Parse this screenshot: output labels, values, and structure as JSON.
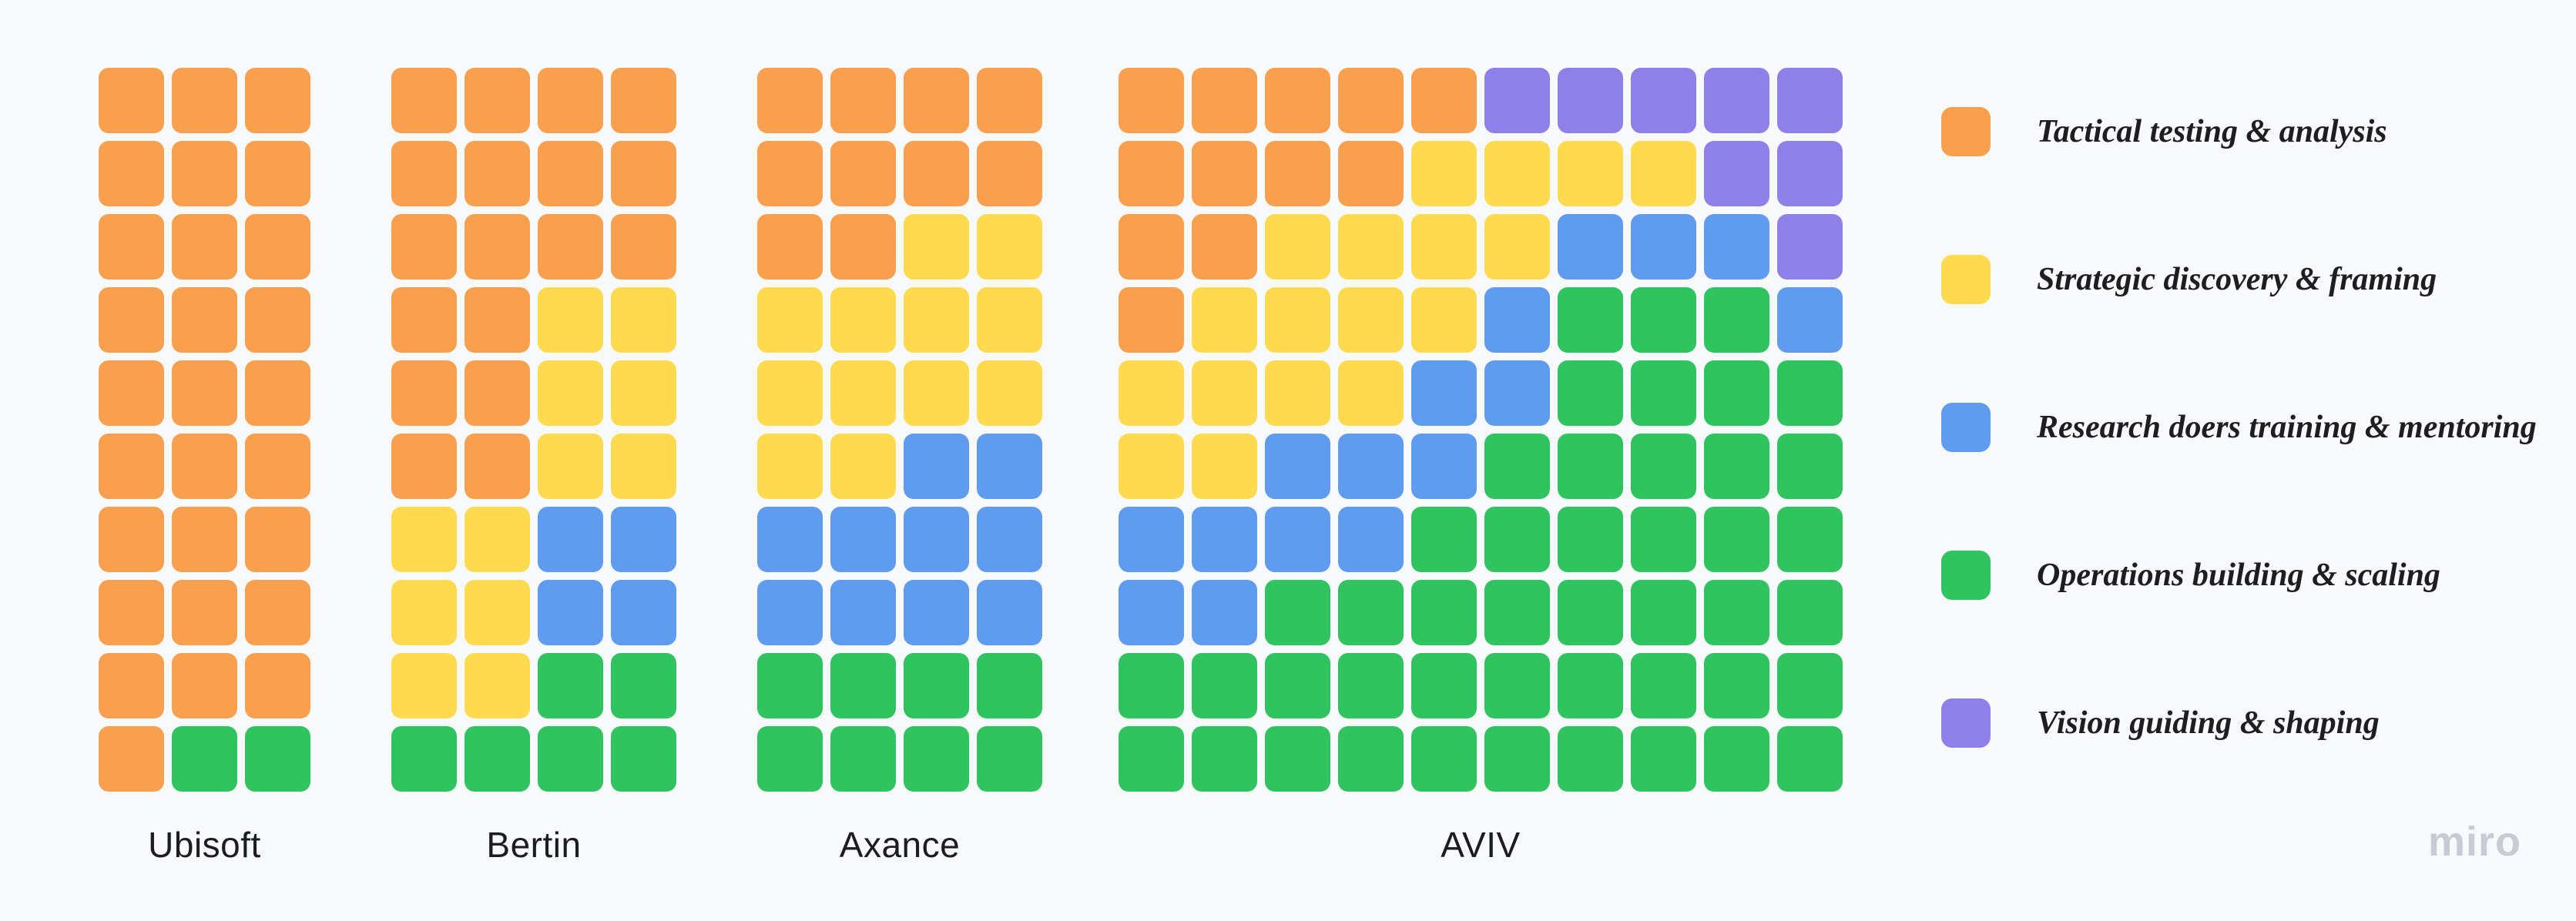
{
  "page": {
    "background": "#F8F9FB",
    "watermark": "miro",
    "watermark_color": "#C7CBD3"
  },
  "palette": {
    "orange": "#F9A04E",
    "yellow": "#FEDA4E",
    "blue": "#5F9CF0",
    "green": "#2FC45F",
    "purple": "#8F7FE9"
  },
  "cell_key_map": {
    "O": "orange",
    "Y": "yellow",
    "B": "blue",
    "G": "green",
    "P": "purple"
  },
  "groups": [
    {
      "name": "Ubisoft",
      "columns": 3,
      "rows": [
        "OOO",
        "OOO",
        "OOO",
        "OOO",
        "OOO",
        "OOO",
        "OOO",
        "OOO",
        "OOO",
        "OGG"
      ]
    },
    {
      "name": "Bertin",
      "columns": 4,
      "rows": [
        "OOOO",
        "OOOO",
        "OOOO",
        "OOYY",
        "OOYY",
        "OOYY",
        "YYBB",
        "YYBB",
        "YYGG",
        "GGGG"
      ]
    },
    {
      "name": "Axance",
      "columns": 4,
      "rows": [
        "OOOO",
        "OOOO",
        "OOYY",
        "YYYY",
        "YYYY",
        "YYBB",
        "BBBB",
        "BBBB",
        "GGGG",
        "GGGG"
      ]
    },
    {
      "name": "AVIV",
      "columns": 10,
      "rows": [
        "OOOOOPPPPP",
        "OOOOYYYYPP",
        "OOYYYYBBBP",
        "OYYYYBGGGB",
        "YYYYBBGGGG",
        "YYBBBGGGGG",
        "BBBBGGGGGG",
        "BBGGGGGGGG",
        "GGGGGGGGGG",
        "GGGGGGGGGG"
      ]
    }
  ],
  "legend": {
    "position": "right",
    "items": [
      {
        "key": "orange",
        "color": "#F9A04E",
        "label": "Tactical testing & analysis"
      },
      {
        "key": "yellow",
        "color": "#FEDA4E",
        "label": "Strategic discovery & framing"
      },
      {
        "key": "blue",
        "color": "#5F9CF0",
        "label": "Research doers training & mentoring"
      },
      {
        "key": "green",
        "color": "#2FC45F",
        "label": "Operations building & scaling"
      },
      {
        "key": "purple",
        "color": "#8F7FE9",
        "label": "Vision guiding & shaping"
      }
    ]
  },
  "chart_data": {
    "type": "waffle",
    "title": "",
    "categories": [
      "Tactical testing & analysis",
      "Strategic discovery & framing",
      "Research doers training & mentoring",
      "Operations building & scaling",
      "Vision guiding & shaping"
    ],
    "legend_position": "right",
    "grid": "on (gaps between square cells)",
    "groups": [
      {
        "name": "Ubisoft",
        "rows": 10,
        "columns": 3,
        "total_cells": 30,
        "counts": {
          "orange": 28,
          "yellow": 0,
          "blue": 0,
          "green": 2,
          "purple": 0
        },
        "cells": [
          "OOO",
          "OOO",
          "OOO",
          "OOO",
          "OOO",
          "OOO",
          "OOO",
          "OOO",
          "OOO",
          "OGG"
        ]
      },
      {
        "name": "Bertin",
        "rows": 10,
        "columns": 4,
        "total_cells": 40,
        "counts": {
          "orange": 18,
          "yellow": 12,
          "blue": 4,
          "green": 6,
          "purple": 0
        },
        "cells": [
          "OOOO",
          "OOOO",
          "OOOO",
          "OOYY",
          "OOYY",
          "OOYY",
          "YYBB",
          "YYBB",
          "YYGG",
          "GGGG"
        ]
      },
      {
        "name": "Axance",
        "rows": 10,
        "columns": 4,
        "total_cells": 40,
        "counts": {
          "orange": 10,
          "yellow": 12,
          "blue": 10,
          "green": 8,
          "purple": 0
        },
        "cells": [
          "OOOO",
          "OOOO",
          "OOYY",
          "YYYY",
          "YYYY",
          "YYBB",
          "BBBB",
          "BBBB",
          "GGGG",
          "GGGG"
        ]
      },
      {
        "name": "AVIV",
        "rows": 10,
        "columns": 10,
        "total_cells": 100,
        "counts": {
          "orange": 12,
          "yellow": 18,
          "blue": 16,
          "green": 46,
          "purple": 8
        },
        "cells": [
          "OOOOOPPPPP",
          "OOOOYYYYPP",
          "OOYYYYBBBP",
          "OYYYYBGGGB",
          "YYYYBBGGGG",
          "YYBBBGGGGG",
          "BBBBGGGGGG",
          "BBGGGGGGGG",
          "GGGGGGGGGG",
          "GGGGGGGGGG"
        ]
      }
    ]
  }
}
